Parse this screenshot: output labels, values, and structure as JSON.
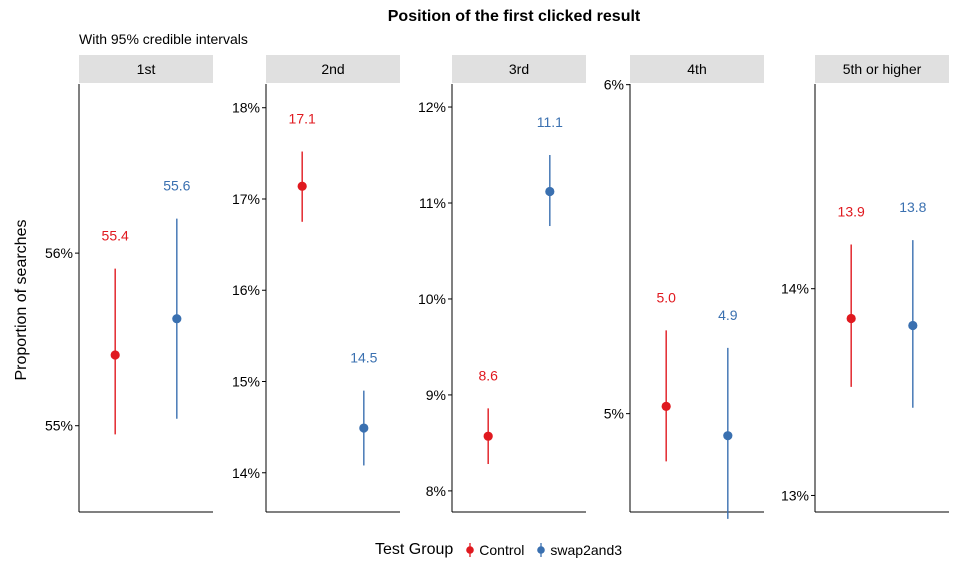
{
  "chart_data": {
    "type": "scatter",
    "title": "Position of the first clicked result",
    "subtitle": "With 95% credible intervals",
    "ylabel": "Proportion of searches",
    "legend": {
      "title": "Test Group",
      "position": "bottom",
      "entries": [
        {
          "name": "Control",
          "color": "#e0191f"
        },
        {
          "name": "swap2and3",
          "color": "#3a70b0"
        }
      ]
    },
    "facets": [
      {
        "label": "1st",
        "ylim": [
          0.545,
          0.5698
        ],
        "yticks": [
          0.55,
          0.56
        ],
        "yticklabels": [
          "55%",
          "56%"
        ],
        "groups": [
          {
            "group": "Control",
            "estimate": 0.5541,
            "lower": 0.5495,
            "upper": 0.5591,
            "label": "55.4"
          },
          {
            "group": "swap2and3",
            "estimate": 0.5562,
            "lower": 0.5504,
            "upper": 0.562,
            "label": "55.6"
          }
        ]
      },
      {
        "label": "2nd",
        "ylim": [
          0.1357,
          0.1826
        ],
        "yticks": [
          0.14,
          0.15,
          0.16,
          0.17,
          0.18
        ],
        "yticklabels": [
          "14%",
          "15%",
          "16%",
          "17%",
          "18%"
        ],
        "groups": [
          {
            "group": "Control",
            "estimate": 0.1714,
            "lower": 0.1675,
            "upper": 0.1752,
            "label": "17.1"
          },
          {
            "group": "swap2and3",
            "estimate": 0.1449,
            "lower": 0.1408,
            "upper": 0.149,
            "label": "14.5"
          }
        ]
      },
      {
        "label": "3rd",
        "ylim": [
          0.0778,
          0.1224
        ],
        "yticks": [
          0.08,
          0.09,
          0.1,
          0.11,
          0.12
        ],
        "yticklabels": [
          "8%",
          "9%",
          "10%",
          "11%",
          "12%"
        ],
        "groups": [
          {
            "group": "Control",
            "estimate": 0.0857,
            "lower": 0.0828,
            "upper": 0.0886,
            "label": "8.6"
          },
          {
            "group": "swap2and3",
            "estimate": 0.1112,
            "lower": 0.1076,
            "upper": 0.115,
            "label": "11.1"
          }
        ]
      },
      {
        "label": "4th",
        "ylim": [
          0.04701,
          0.06002
        ],
        "yticks": [
          0.05,
          0.06
        ],
        "yticklabels": [
          "5%",
          "6%"
        ],
        "groups": [
          {
            "group": "Control",
            "estimate": 0.05022,
            "lower": 0.04855,
            "upper": 0.05253,
            "label": "5.0"
          },
          {
            "group": "swap2and3",
            "estimate": 0.04933,
            "lower": 0.0468,
            "upper": 0.052,
            "label": "4.9"
          }
        ]
      },
      {
        "label": "5th or higher",
        "ylim": [
          0.1292,
          0.1499
        ],
        "yticks": [
          0.13,
          0.14
        ],
        "yticklabels": [
          "13%",
          "14%"
        ],
        "groups": [
          {
            "group": "Control",
            "estimate": 0.13856,
            "lower": 0.13525,
            "upper": 0.14214,
            "label": "13.9"
          },
          {
            "group": "swap2and3",
            "estimate": 0.13822,
            "lower": 0.13424,
            "upper": 0.14235,
            "label": "13.8"
          }
        ]
      }
    ]
  }
}
